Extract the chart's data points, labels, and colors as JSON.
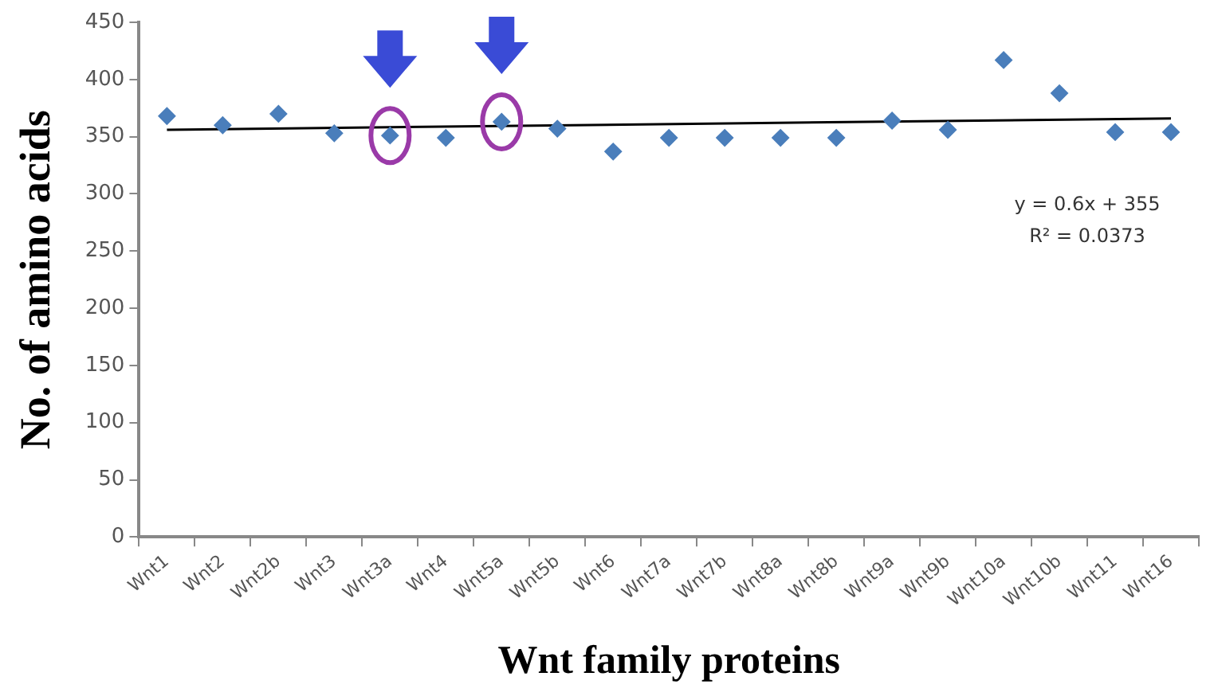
{
  "chart_data": {
    "type": "scatter",
    "xlabel": "Wnt family proteins",
    "ylabel": "No. of amino acids",
    "categories": [
      "Wnt1",
      "Wnt2",
      "Wnt2b",
      "Wnt3",
      "Wnt3a",
      "Wnt4",
      "Wnt5a",
      "Wnt5b",
      "Wnt6",
      "Wnt7a",
      "Wnt7b",
      "Wnt8a",
      "Wnt8b",
      "Wnt9a",
      "Wnt9b",
      "Wnt10a",
      "Wnt10b",
      "Wnt11",
      "Wnt16"
    ],
    "ylim": [
      0,
      450
    ],
    "yticks": [
      0,
      50,
      100,
      150,
      200,
      250,
      300,
      350,
      400,
      450
    ],
    "series": [
      {
        "type": "scatter",
        "color": "#4a7ebb",
        "marker": "diamond",
        "values": [
          368,
          360,
          370,
          353,
          351,
          349,
          363,
          357,
          337,
          349,
          349,
          349,
          349,
          364,
          356,
          417,
          388,
          354,
          354
        ]
      },
      {
        "type": "line",
        "color": "#000000",
        "marker": "none",
        "x": [
          "Wnt1",
          "Wnt16"
        ],
        "values": [
          356,
          366
        ]
      }
    ],
    "annotations": [
      "y = 0.6x + 355",
      "R² = 0.0373"
    ]
  }
}
